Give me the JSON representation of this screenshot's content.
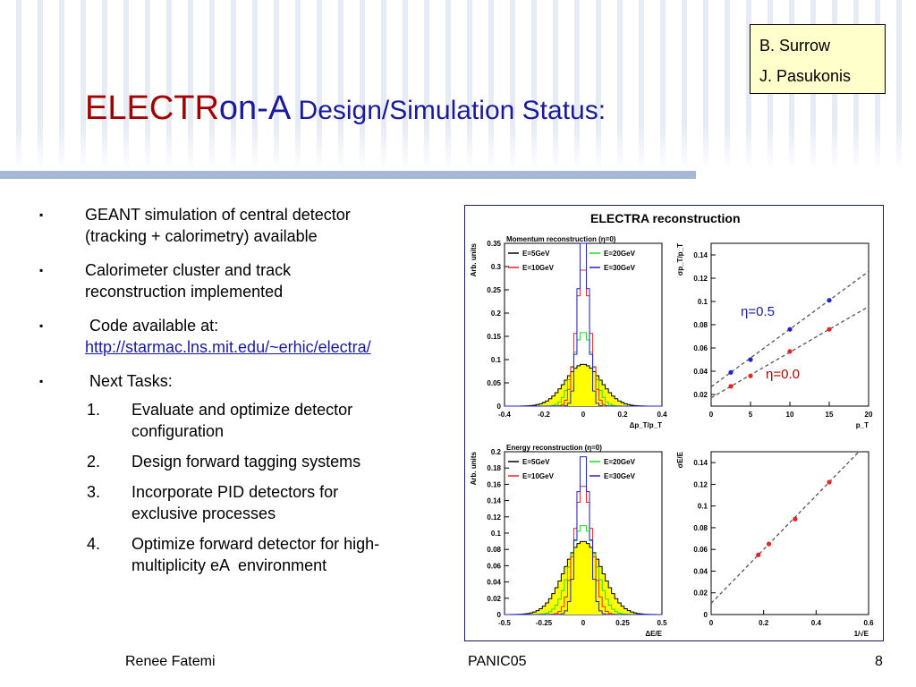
{
  "authors": [
    "B. Surrow",
    "J. Pasukonis"
  ],
  "title": {
    "part1": "ELECTR",
    "part2": "on-A",
    "part3": " Design/Simulation Status:"
  },
  "bullets": [
    {
      "mark": "▪",
      "lines": [
        "GEANT simulation of central detector",
        "(tracking + calorimetry) available"
      ]
    },
    {
      "mark": "▪",
      "lines": [
        "Calorimeter cluster and track",
        "reconstruction implemented"
      ]
    },
    {
      "mark": "▪",
      "lines": [
        " Code available at:"
      ],
      "link": "http://starmac.lns.mit.edu/~erhic/electra/"
    },
    {
      "mark": "▪",
      "lines": [
        " Next Tasks:"
      ]
    }
  ],
  "tasks": [
    {
      "num": "1.",
      "lines": [
        "Evaluate and optimize detector",
        "configuration"
      ]
    },
    {
      "num": "2.",
      "lines": [
        "Design forward tagging systems"
      ]
    },
    {
      "num": "3.",
      "lines": [
        "Incorporate PID detectors for",
        "exclusive processes"
      ]
    },
    {
      "num": "4.",
      "lines": [
        "Optimize forward detector for high-",
        "multiplicity eA  environment"
      ]
    }
  ],
  "footer": {
    "left": "Renee Fatemi",
    "center": "PANIC05",
    "right": "8"
  },
  "figure_title": "ELECTRA reconstruction",
  "eta_labels": {
    "high": "η=0.5",
    "low": "η=0.0"
  },
  "chart_data": [
    {
      "type": "histogram",
      "title": "Momentum reconstruction (η=0)",
      "xlabel": "Δp_T/p_T",
      "ylabel": "Arb. units",
      "xlim": [
        -0.4,
        0.4
      ],
      "ylim": [
        0,
        0.35
      ],
      "xticks": [
        "-0.4",
        "-0.2",
        "0",
        "0.2",
        "0.4"
      ],
      "yticks": [
        "0",
        "0.05",
        "0.1",
        "0.15",
        "0.2",
        "0.25",
        "0.3",
        "0.35"
      ],
      "legend": [
        {
          "name": "E=5GeV",
          "color": "#000000"
        },
        {
          "name": "E=20GeV",
          "color": "#22dd22"
        },
        {
          "name": "E=10GeV",
          "color": "#ee2222"
        },
        {
          "name": "E=30GeV",
          "color": "#2222cc"
        }
      ]
    },
    {
      "type": "scatter",
      "xlabel": "p_T",
      "ylabel": "σp_T/p_T",
      "xlim": [
        0,
        20
      ],
      "ylim": [
        0.01,
        0.15
      ],
      "xticks": [
        "0",
        "5",
        "10",
        "15",
        "20"
      ],
      "yticks": [
        "0.02",
        "0.04",
        "0.06",
        "0.08",
        "0.1",
        "0.12",
        "0.14"
      ],
      "series": [
        {
          "name": "η=0.5",
          "color": "#2222cc",
          "x": [
            2.5,
            5,
            10,
            15
          ],
          "y": [
            0.039,
            0.05,
            0.076,
            0.101
          ]
        },
        {
          "name": "η=0.0",
          "color": "#ee2222",
          "x": [
            2.5,
            5,
            10,
            15
          ],
          "y": [
            0.027,
            0.036,
            0.057,
            0.076
          ]
        }
      ]
    },
    {
      "type": "histogram",
      "title": "Energy reconstruction (η=0)",
      "xlabel": "ΔE/E",
      "ylabel": "Arb. units",
      "xlim": [
        -0.5,
        0.5
      ],
      "ylim": [
        0,
        0.2
      ],
      "xticks": [
        "-0.5",
        "-0.25",
        "0",
        "0.25",
        "0.5"
      ],
      "yticks": [
        "0",
        "0.02",
        "0.04",
        "0.06",
        "0.08",
        "0.1",
        "0.12",
        "0.14",
        "0.16",
        "0.18",
        "0.2"
      ],
      "legend": [
        {
          "name": "E=5GeV",
          "color": "#000000"
        },
        {
          "name": "E=20GeV",
          "color": "#22dd22"
        },
        {
          "name": "E=10GeV",
          "color": "#ee2222"
        },
        {
          "name": "E=30GeV",
          "color": "#2222cc"
        }
      ]
    },
    {
      "type": "scatter",
      "xlabel": "1/√E",
      "ylabel": "σE/E",
      "xlim": [
        0,
        0.6
      ],
      "ylim": [
        0,
        0.15
      ],
      "xticks": [
        "0",
        "0.2",
        "0.4",
        "0.6"
      ],
      "yticks": [
        "0",
        "0.02",
        "0.04",
        "0.06",
        "0.08",
        "0.1",
        "0.12",
        "0.14"
      ],
      "series": [
        {
          "color": "#ee2222",
          "x": [
            0.18,
            0.22,
            0.32,
            0.45
          ],
          "y": [
            0.055,
            0.065,
            0.088,
            0.122
          ]
        }
      ]
    }
  ]
}
